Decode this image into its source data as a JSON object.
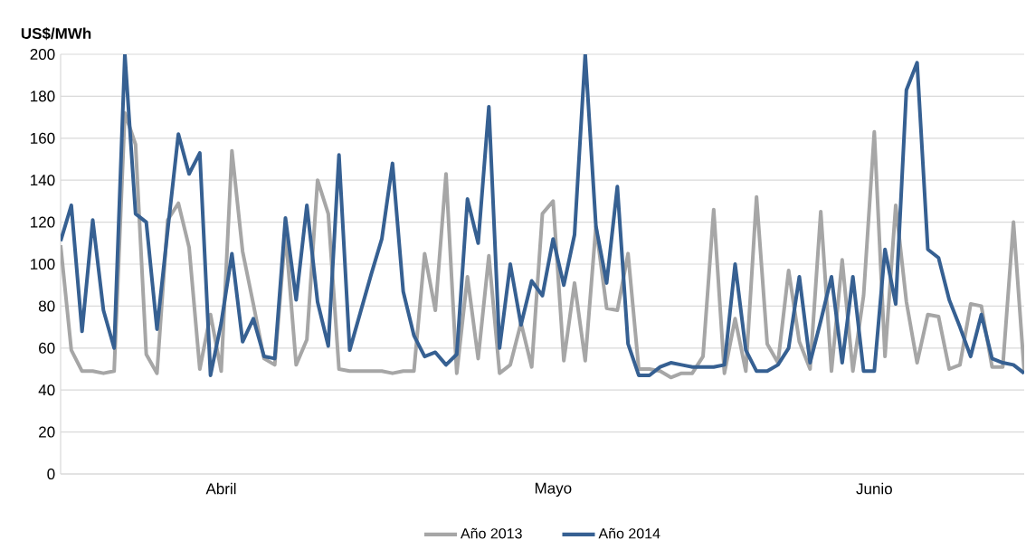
{
  "chart_data": {
    "type": "line",
    "ylabel": "US$/MWh",
    "categories": [
      null,
      null,
      null,
      null,
      null,
      null,
      null,
      null,
      null,
      null,
      null,
      null,
      null,
      null,
      null,
      "Abril",
      null,
      null,
      null,
      null,
      null,
      null,
      null,
      null,
      null,
      null,
      null,
      null,
      null,
      null,
      null,
      null,
      null,
      null,
      null,
      null,
      null,
      null,
      null,
      null,
      null,
      null,
      null,
      null,
      null,
      null,
      "Mayo",
      null,
      null,
      null,
      null,
      null,
      null,
      null,
      null,
      null,
      null,
      null,
      null,
      null,
      null,
      null,
      null,
      null,
      null,
      null,
      null,
      null,
      null,
      null,
      null,
      null,
      null,
      null,
      null,
      null,
      "Junio",
      null,
      null,
      null,
      null,
      null,
      null,
      null,
      null,
      null,
      null,
      null,
      null,
      null,
      null
    ],
    "series": [
      {
        "name": "Año 2013",
        "color": "#a6a6a6",
        "values": [
          109,
          59,
          49,
          49,
          48,
          49,
          172,
          157,
          57,
          48,
          121,
          129,
          108,
          50,
          76,
          49,
          154,
          106,
          81,
          55,
          52,
          115,
          52,
          64,
          140,
          124,
          50,
          49,
          49,
          49,
          49,
          48,
          49,
          49,
          105,
          78,
          143,
          48,
          94,
          55,
          104,
          48,
          52,
          72,
          51,
          124,
          130,
          54,
          91,
          54,
          118,
          79,
          78,
          105,
          50,
          50,
          49,
          46,
          48,
          48,
          56,
          126,
          48,
          74,
          49,
          132,
          62,
          53,
          97,
          63,
          50,
          125,
          49,
          102,
          49,
          85,
          163,
          56,
          128,
          82,
          53,
          76,
          75,
          50,
          52,
          81,
          80,
          51,
          51,
          120,
          49
        ]
      },
      {
        "name": "Año 2014",
        "color": "#366092",
        "values": [
          111,
          128,
          68,
          121,
          78,
          60,
          200,
          124,
          120,
          69,
          116,
          162,
          143,
          153,
          47,
          72,
          105,
          63,
          74,
          56,
          55,
          122,
          83,
          128,
          82,
          61,
          152,
          59,
          77,
          95,
          112,
          148,
          87,
          66,
          56,
          58,
          52,
          57,
          131,
          110,
          175,
          60,
          100,
          71,
          92,
          85,
          112,
          90,
          114,
          200,
          118,
          91,
          137,
          62,
          47,
          47,
          51,
          53,
          52,
          51,
          51,
          51,
          52,
          100,
          59,
          49,
          49,
          52,
          60,
          94,
          53,
          73,
          94,
          53,
          94,
          49,
          49,
          107,
          81,
          183,
          196,
          107,
          103,
          83,
          70,
          56,
          76,
          55,
          53,
          52,
          48
        ]
      }
    ],
    "ylim": [
      0,
      200
    ],
    "yticks": [
      0,
      20,
      40,
      60,
      80,
      100,
      120,
      140,
      160,
      180,
      200
    ],
    "grid": "y",
    "legend": "bottom"
  }
}
